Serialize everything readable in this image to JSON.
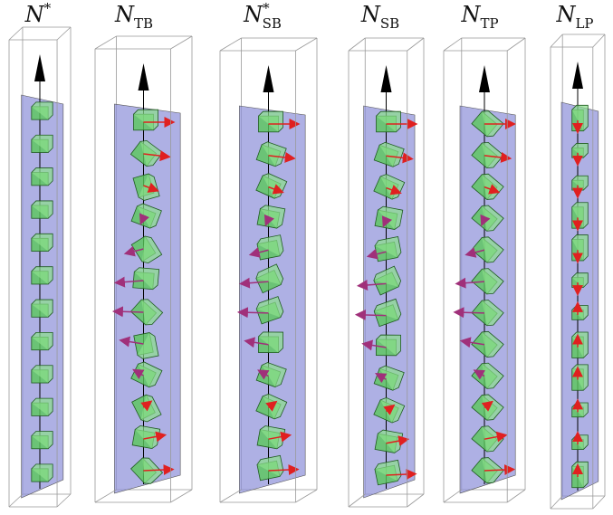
{
  "panels": [
    {
      "label": {
        "base": "N",
        "sup": "*"
      }
    },
    {
      "label": {
        "base": "N",
        "sub": "TB"
      }
    },
    {
      "label": {
        "base": "N",
        "sup": "*",
        "sub": "SB"
      }
    },
    {
      "label": {
        "base": "N",
        "sub": "SB"
      }
    },
    {
      "label": {
        "base": "N",
        "sub": "TP"
      }
    },
    {
      "label": {
        "base": "N",
        "sub": "LP"
      }
    }
  ]
}
